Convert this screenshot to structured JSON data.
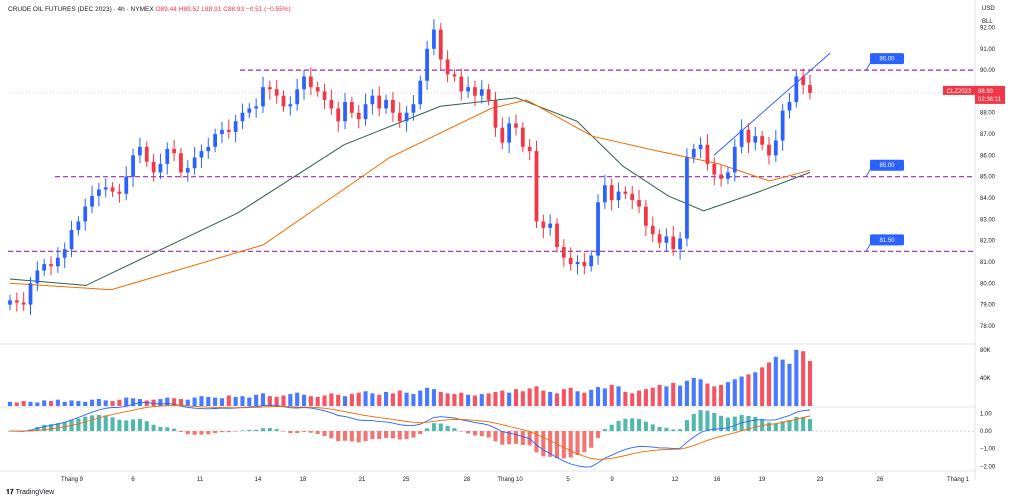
{
  "header": {
    "symbol": "CRUDE OIL FUTURES (DEC 2023) · 4h · NYMEX",
    "open": "O89.44",
    "high": "H89.52",
    "low": "L88.91",
    "close": "C88.93",
    "change": "−0.51 (−0.55%)"
  },
  "currency": "USD",
  "unit": "BLL",
  "brand": "TradingView",
  "price_badge": {
    "symbol": "CLZ2023",
    "price": "88.93",
    "timer": "02:36:11"
  },
  "colors": {
    "up": "#2962ff",
    "down": "#f23645",
    "level": "#9c27b0",
    "ma_fast": "#ef6c00",
    "ma_slow": "#2e5d4f",
    "channel": "#2962ff",
    "macd_pos": "#26a69a",
    "macd_neg": "#ef5350"
  },
  "chart_data": [
    {
      "type": "candlestick",
      "y_ticks": [
        "92.00",
        "91.00",
        "90.00",
        "89.00",
        "88.00",
        "87.00",
        "86.00",
        "85.00",
        "84.00",
        "83.00",
        "82.00",
        "81.00",
        "80.00",
        "79.00",
        "78.00"
      ],
      "ylim": [
        77.2,
        93.1
      ],
      "x_ticks": [
        "Tháng 9",
        "6",
        "11",
        "14",
        "18",
        "21",
        "25",
        "28",
        "Tháng 10",
        "5",
        "9",
        "12",
        "16",
        "19",
        "23",
        "26",
        "Tháng 1"
      ],
      "levels": [
        {
          "label": "90.00",
          "value": 90.0
        },
        {
          "label": "85.00",
          "value": 85.0
        },
        {
          "label": "81.50",
          "value": 81.5
        }
      ],
      "closes": [
        79.2,
        79.1,
        79.0,
        80.0,
        80.6,
        80.9,
        80.8,
        81.2,
        81.6,
        82.5,
        82.9,
        83.6,
        84.1,
        84.4,
        84.5,
        84.3,
        84.2,
        85.0,
        86.0,
        86.4,
        85.7,
        85.2,
        85.6,
        86.3,
        86.1,
        85.2,
        85.4,
        85.9,
        86.2,
        86.4,
        87.0,
        87.2,
        87.1,
        87.6,
        88.0,
        88.2,
        88.3,
        89.2,
        89.1,
        88.8,
        88.3,
        88.4,
        89.1,
        89.7,
        89.2,
        89.0,
        88.6,
        88.2,
        87.6,
        88.5,
        88.0,
        87.7,
        88.4,
        88.8,
        88.2,
        88.6,
        88.0,
        87.6,
        88.0,
        88.4,
        89.5,
        91.0,
        91.9,
        90.5,
        89.8,
        89.7,
        89.0,
        89.2,
        88.8,
        89.1,
        88.6,
        87.3,
        86.6,
        87.5,
        87.3,
        86.4,
        86.2,
        82.9,
        82.6,
        82.8,
        81.7,
        81.2,
        80.9,
        81.0,
        80.8,
        81.3,
        83.8,
        84.6,
        83.9,
        84.3,
        84.2,
        83.9,
        83.6,
        82.7,
        82.3,
        81.9,
        82.2,
        81.6,
        82.1,
        85.9,
        86.3,
        86.5,
        85.6,
        85.1,
        84.9,
        85.2,
        86.4,
        87.2,
        86.6,
        86.9,
        86.5,
        86.0,
        86.7,
        88.1,
        88.5,
        89.7,
        89.3,
        88.93
      ],
      "ma_slow": [
        [
          0,
          80.2
        ],
        [
          15,
          79.9
        ],
        [
          45,
          83.3
        ],
        [
          66,
          86.5
        ],
        [
          85,
          88.3
        ],
        [
          100,
          88.7
        ],
        [
          112,
          87.6
        ],
        [
          121,
          85.5
        ],
        [
          130,
          84.1
        ],
        [
          137,
          83.4
        ],
        [
          148,
          84.3
        ],
        [
          158,
          85.2
        ]
      ],
      "ma_fast": [
        [
          0,
          80.0
        ],
        [
          20,
          79.7
        ],
        [
          50,
          81.8
        ],
        [
          75,
          85.9
        ],
        [
          95,
          88.2
        ],
        [
          102,
          88.6
        ],
        [
          115,
          86.9
        ],
        [
          128,
          86.2
        ],
        [
          140,
          85.6
        ],
        [
          150,
          84.8
        ],
        [
          158,
          85.3
        ]
      ],
      "channel": [
        [
          139,
          86.0
        ],
        [
          162,
          90.8
        ]
      ]
    },
    {
      "type": "bar",
      "name": "Volume",
      "y_ticks": [
        "80K",
        "40K"
      ],
      "ylim": [
        0,
        84
      ],
      "values": [
        6,
        5,
        7,
        6,
        5,
        8,
        7,
        9,
        6,
        8,
        7,
        6,
        9,
        10,
        8,
        7,
        9,
        12,
        11,
        10,
        8,
        9,
        10,
        12,
        11,
        10,
        9,
        12,
        14,
        13,
        12,
        11,
        15,
        13,
        14,
        12,
        16,
        18,
        14,
        13,
        15,
        17,
        19,
        16,
        14,
        13,
        15,
        18,
        16,
        14,
        17,
        19,
        21,
        18,
        16,
        20,
        18,
        22,
        19,
        17,
        22,
        26,
        24,
        20,
        18,
        17,
        19,
        16,
        15,
        17,
        18,
        20,
        22,
        19,
        24,
        21,
        25,
        28,
        22,
        20,
        18,
        24,
        26,
        21,
        19,
        23,
        27,
        25,
        30,
        28,
        20,
        18,
        22,
        24,
        26,
        30,
        28,
        33,
        29,
        36,
        40,
        38,
        32,
        28,
        30,
        34,
        38,
        42,
        45,
        48,
        55,
        62,
        70,
        66,
        60,
        80,
        78,
        64
      ]
    },
    {
      "type": "line",
      "name": "MACD",
      "y_ticks": [
        "1.00",
        "0.00",
        "−1.00",
        "−2.00"
      ],
      "ylim": [
        -2.2,
        1.3
      ]
    }
  ]
}
